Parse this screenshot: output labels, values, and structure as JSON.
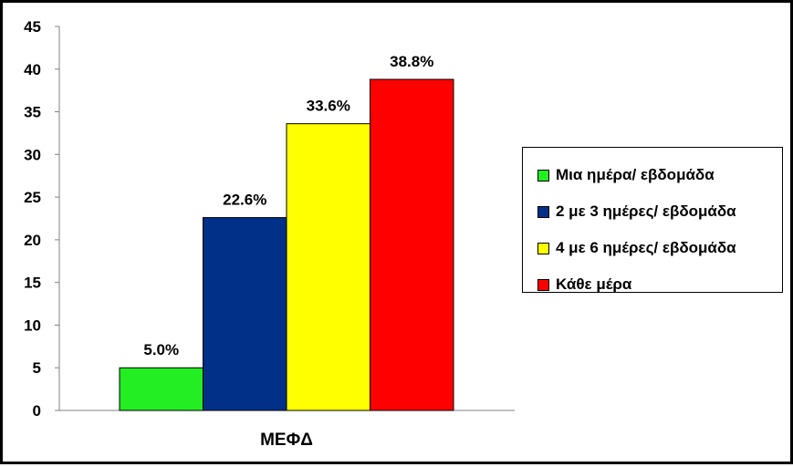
{
  "chart_data": {
    "type": "bar",
    "categories": [
      "ΜΕΦΔ"
    ],
    "series": [
      {
        "name": "Μια ημέρα/ εβδομάδα",
        "values": [
          5.0
        ],
        "label": "5.0%",
        "color": "#22ee22"
      },
      {
        "name": "2 με 3 ημέρες/ εβδομάδα",
        "values": [
          22.6
        ],
        "label": "22.6%",
        "color": "#003087"
      },
      {
        "name": "4 με 6 ημέρες/ εβδομάδα",
        "values": [
          33.6
        ],
        "label": "33.6%",
        "color": "#ffff00"
      },
      {
        "name": "Κάθε μέρα",
        "values": [
          38.8
        ],
        "label": "38.8%",
        "color": "#ff0000"
      }
    ],
    "yticks": [
      "0",
      "5",
      "10",
      "15",
      "20",
      "25",
      "30",
      "35",
      "40",
      "45"
    ],
    "ylim": [
      0,
      45
    ],
    "grid": false,
    "legend_position": "right"
  }
}
